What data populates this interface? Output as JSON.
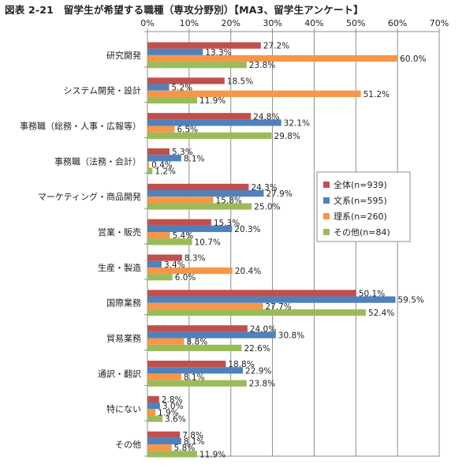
{
  "chart_data": {
    "type": "bar",
    "orientation": "horizontal",
    "title": "図表 2-21　留学生が希望する職種（専攻分野別）【MA3、留学生アンケート】",
    "xlim": [
      0,
      70
    ],
    "x_ticks": [
      "0%",
      "10%",
      "20%",
      "30%",
      "40%",
      "50%",
      "60%",
      "70%"
    ],
    "grid": true,
    "legend_position": "right-middle",
    "categories": [
      "研究開発",
      "システム開発・設計",
      "事務職（総務・人事・広報等）",
      "事務職（法務・会計）",
      "マーケティング・商品開発",
      "営業・販売",
      "生産・製造",
      "国際業務",
      "貿易業務",
      "通訳・翻訳",
      "特にない",
      "その他"
    ],
    "series": [
      {
        "name": "全体(n=939)",
        "color": "#c0504d",
        "values": [
          27.2,
          18.5,
          24.8,
          5.3,
          24.3,
          15.3,
          8.3,
          50.1,
          24.0,
          18.8,
          2.8,
          7.8
        ],
        "labels": [
          "27.2%",
          "18.5%",
          "24.8%",
          "5.3%",
          "24.3%",
          "15.3%",
          "8.3%",
          "50.1%",
          "24.0%",
          "18.8%",
          "2.8%",
          "7.8%"
        ]
      },
      {
        "name": "文系(n=595)",
        "color": "#4f81bd",
        "values": [
          13.3,
          5.2,
          32.1,
          8.1,
          27.9,
          20.3,
          3.4,
          59.5,
          30.8,
          22.9,
          3.0,
          8.1
        ],
        "labels": [
          "13.3%",
          "5.2%",
          "32.1%",
          "8.1%",
          "27.9%",
          "20.3%",
          "3.4%",
          "59.5%",
          "30.8%",
          "22.9%",
          "3.0%",
          "8.1%"
        ]
      },
      {
        "name": "理系(n=260)",
        "color": "#f79646",
        "values": [
          60.0,
          51.2,
          6.5,
          0.4,
          15.8,
          5.4,
          20.4,
          27.7,
          8.8,
          8.1,
          1.9,
          5.8
        ],
        "labels": [
          "60.0%",
          "51.2%",
          "6.5%",
          "0.4%",
          "15.8%",
          "5.4%",
          "20.4%",
          "27.7%",
          "8.8%",
          "8.1%",
          "1.9%",
          "5.8%"
        ]
      },
      {
        "name": "その他(n=84)",
        "color": "#9bbb59",
        "values": [
          23.8,
          11.9,
          29.8,
          1.2,
          25.0,
          10.7,
          6.0,
          52.4,
          22.6,
          23.8,
          3.6,
          11.9
        ],
        "labels": [
          "23.8%",
          "11.9%",
          "29.8%",
          "1.2%",
          "25.0%",
          "10.7%",
          "6.0%",
          "52.4%",
          "22.6%",
          "23.8%",
          "3.6%",
          "11.9%"
        ]
      }
    ]
  }
}
